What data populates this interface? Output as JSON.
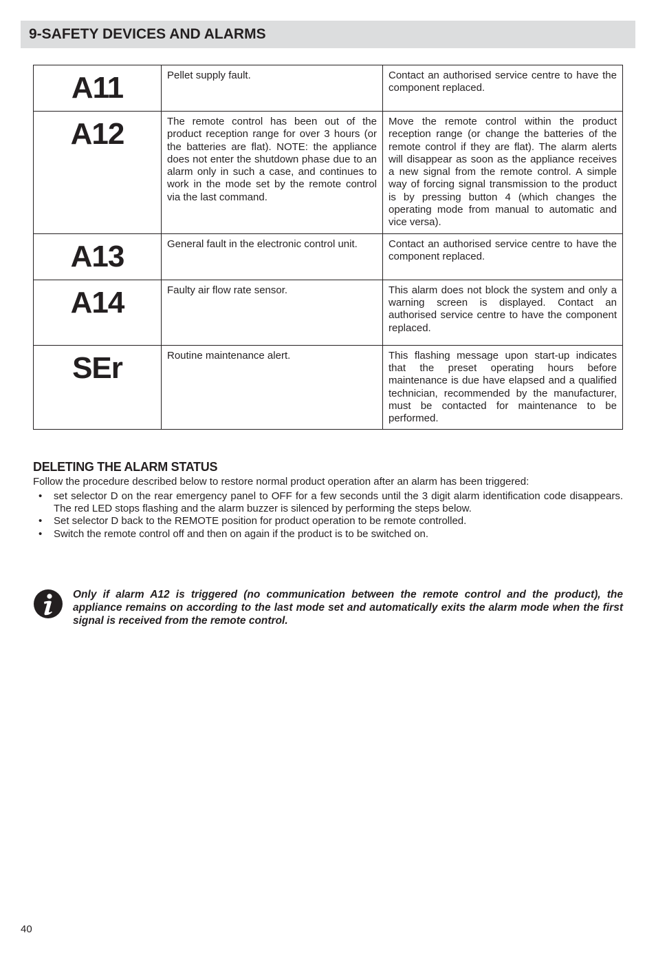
{
  "header": {
    "title": "9-SAFETY DEVICES AND ALARMS"
  },
  "table": {
    "rows": [
      {
        "code": "A11",
        "desc": "Pellet supply fault.",
        "action": "Contact an authorised service centre to have the component replaced.",
        "height_class": "row-short"
      },
      {
        "code": "A12",
        "desc": "The remote control has been out of the product reception range for over 3 hours (or the batteries are flat).\nNOTE: the appliance does not enter the shutdown phase due to an alarm only in such a case, and continues to work in the mode set by the remote control via the last command.",
        "action": "Move the remote control within the product reception range (or change the batteries of the remote control if they are flat). The alarm alerts will disappear as soon as the appliance receives a new signal from the remote control. A simple way of forcing signal transmission to the product is by pressing button 4 (which changes the operating mode from manual to automatic and vice versa).",
        "height_class": "row-tall"
      },
      {
        "code": "A13",
        "desc": "General fault in the electronic control unit.",
        "action": "Contact an authorised service centre to have the component replaced.",
        "height_class": "row-short"
      },
      {
        "code": "A14",
        "desc": "Faulty air flow rate sensor.",
        "action": "This alarm does not block the system and only a warning screen is displayed. Contact an authorised service centre to have the component replaced.",
        "height_class": "row-med"
      },
      {
        "code": "SEr",
        "desc": "Routine maintenance alert.",
        "action": "This flashing message upon start-up indicates that the preset operating hours before maintenance is due have elapsed and a qualified technician, recommended by the manufacturer, must be contacted for maintenance to be performed.",
        "height_class": "row-med2"
      }
    ]
  },
  "deleting": {
    "title": "DELETING THE ALARM STATUS",
    "intro": "Follow the procedure described below to restore normal product operation after an alarm has been triggered:",
    "bullets": [
      "set selector D on the rear emergency panel to OFF for a few seconds until the 3 digit alarm identification code disappears. The red LED stops flashing and the alarm buzzer is silenced by performing the steps below.",
      "Set selector D back to the REMOTE position for product operation to be remote controlled.",
      "Switch the remote control off and then on again if the product is to be switched on."
    ]
  },
  "note": {
    "text": "Only if alarm A12 is triggered (no communication between the remote control and the product), the appliance remains on according to the last mode set and automatically exits the alarm mode when the first signal is received from the remote control."
  },
  "page_number": "40",
  "colors": {
    "header_bg": "#dcddde",
    "text": "#231f20",
    "page_bg": "#ffffff",
    "icon_fill": "#231f20"
  }
}
